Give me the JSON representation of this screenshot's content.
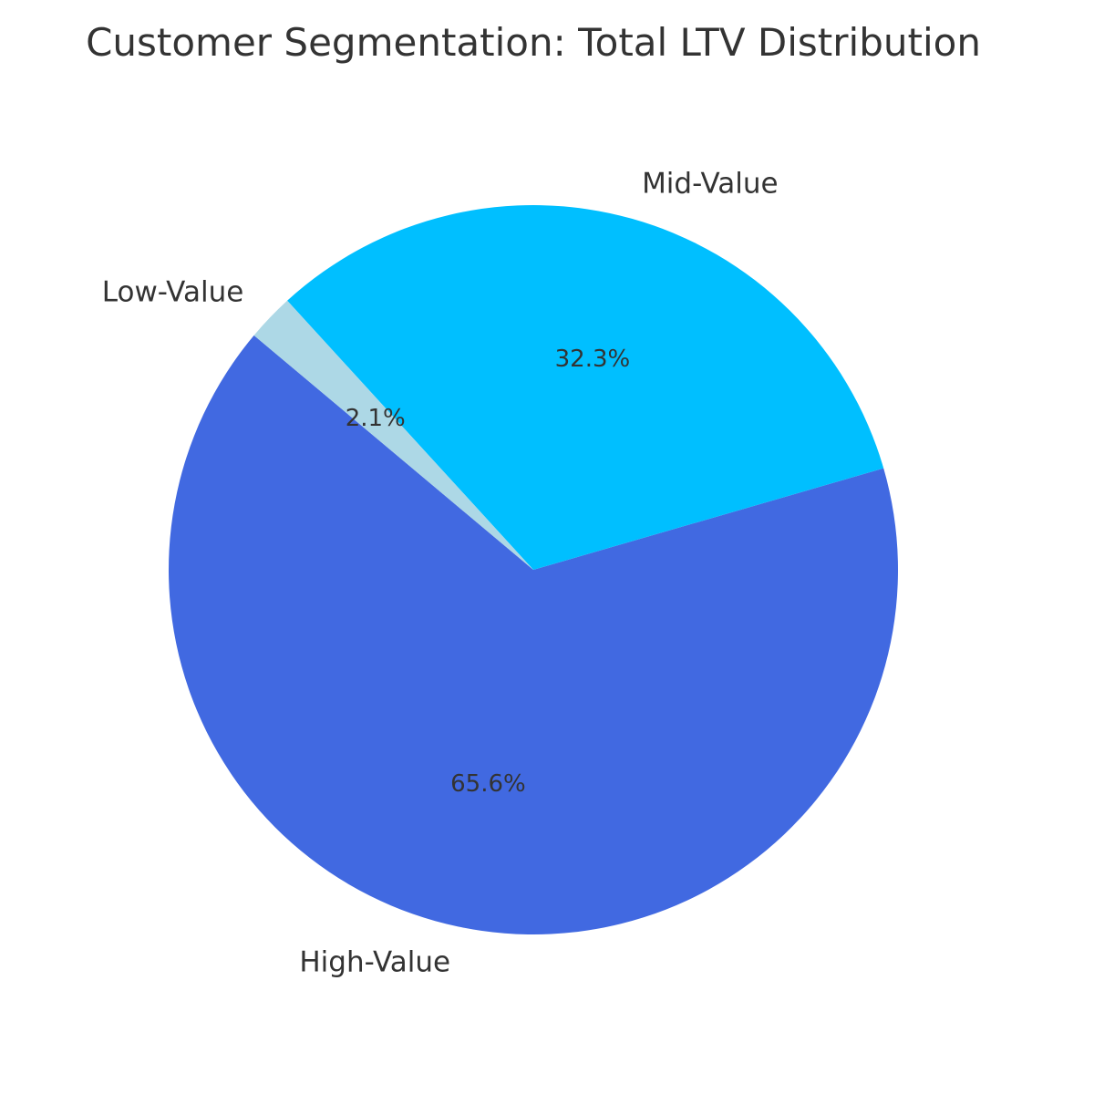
{
  "chart_data": {
    "type": "pie",
    "title": "Customer Segmentation: Total LTV Distribution",
    "slices": [
      {
        "label": "High-Value",
        "value": 65.6,
        "pct_label": "65.6%",
        "color": "#4169E1"
      },
      {
        "label": "Mid-Value",
        "value": 32.3,
        "pct_label": "32.3%",
        "color": "#00BFFF"
      },
      {
        "label": "Low-Value",
        "value": 2.1,
        "pct_label": "2.1%",
        "color": "#ADD8E6"
      }
    ],
    "start_angle_deg": 140,
    "direction": "counterclockwise",
    "legend": "none",
    "text_color": "#333333"
  }
}
